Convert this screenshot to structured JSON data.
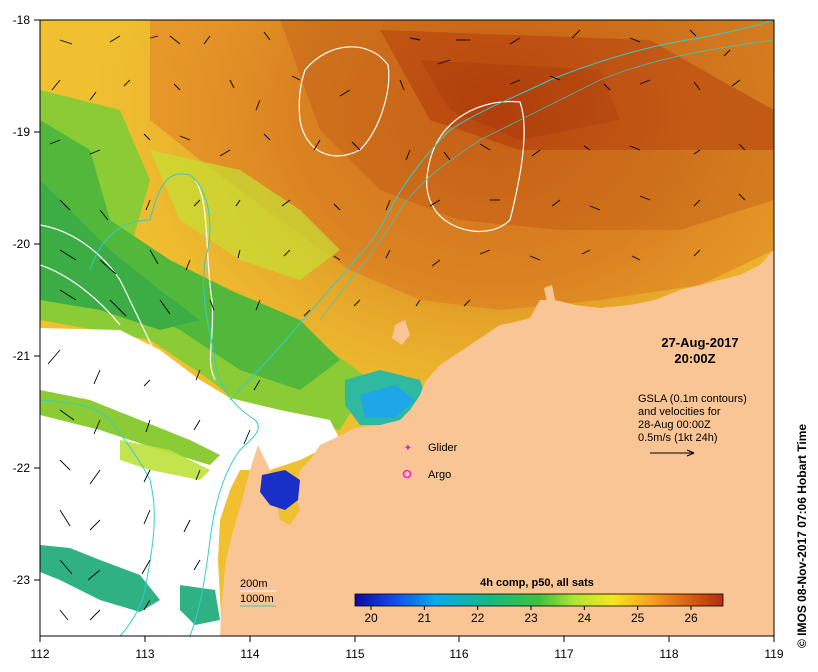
{
  "map": {
    "type": "sst-map",
    "lon_range": [
      112,
      119
    ],
    "lat_range": [
      -23.5,
      -18
    ],
    "x_ticks": [
      "112",
      "113",
      "114",
      "115",
      "116",
      "117",
      "118",
      "119"
    ],
    "y_ticks": [
      "-18",
      "-19",
      "-20",
      "-21",
      "-22",
      "-23"
    ],
    "date": "27-Aug-2017",
    "time": "20:00Z",
    "credit": "© IMOS 08-Nov-2017 07:06 Hobart Time",
    "gsla_note": [
      "GSLA (0.1m contours)",
      "and velocities for",
      "28-Aug 00:00Z",
      "0.5m/s (1kt 24h)"
    ],
    "legend_glider": "Glider",
    "legend_argo": "Argo",
    "isobath_200": "200m",
    "isobath_1000": "1000m",
    "colorbar_title": "4h comp, p50, all sats",
    "colorbar_ticks": [
      "20",
      "21",
      "22",
      "23",
      "24",
      "25",
      "26"
    ],
    "colorbar_range": [
      19.7,
      26.6
    ],
    "colors": {
      "land": "#f9c594",
      "nodata": "#ffffff",
      "isobath_1000": "#33cccc",
      "isobath_200": "#ffffff",
      "glider": "#cc22cc",
      "argo": "#ee22ee"
    }
  }
}
